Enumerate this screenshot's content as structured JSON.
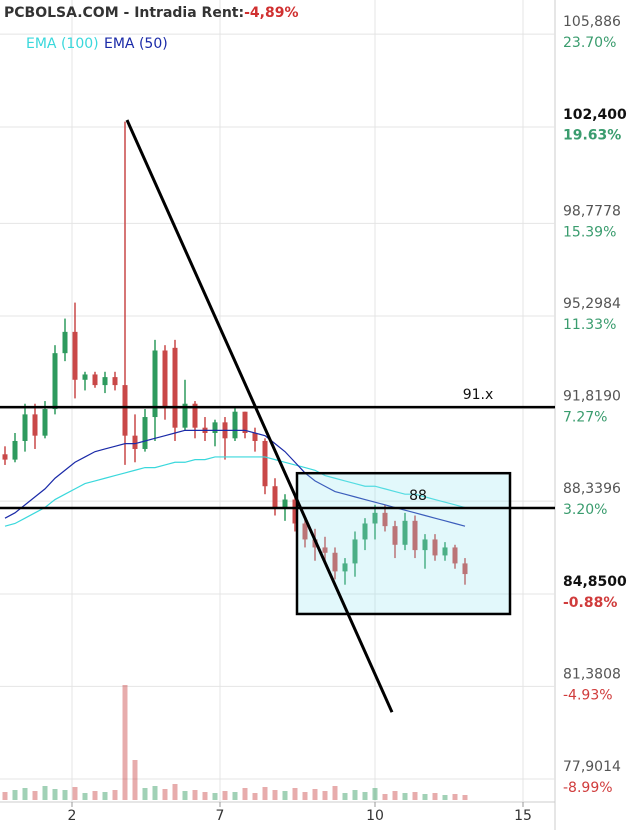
{
  "chart_data": {
    "type": "candlestick",
    "title": "PCBOLSA.COM - Intradia  Rent:",
    "title_change": "-4,89%",
    "xlim": [
      -0.5,
      55
    ],
    "xticks": [
      {
        "value": 6.7,
        "label": "2"
      },
      {
        "value": 21.5,
        "label": "7"
      },
      {
        "value": 37,
        "label": "10"
      },
      {
        "value": 51.8,
        "label": "15"
      }
    ],
    "ylim": [
      77.11,
      107.17
    ],
    "yticks": [
      {
        "value": 105.886,
        "label": "105,886"
      },
      {
        "value": 102.4,
        "label": "102,400"
      },
      {
        "value": 98.7778,
        "label": "98,7778"
      },
      {
        "value": 95.2984,
        "label": "95,2984"
      },
      {
        "value": 91.819,
        "label": "91,8190"
      },
      {
        "value": 88.3396,
        "label": "88,3396"
      },
      {
        "value": 84.85,
        "label": "84,8500"
      },
      {
        "value": 81.3808,
        "label": "81,3808"
      },
      {
        "value": 77.9014,
        "label": "77,9014"
      }
    ],
    "y2lim": [
      -9.92,
      25.19
    ],
    "y2ticks": [
      {
        "value": 23.7,
        "label": "23.70%"
      },
      {
        "value": 19.63,
        "label": "19.63%"
      },
      {
        "value": 15.39,
        "label": "15.39%"
      },
      {
        "value": 11.33,
        "label": "11.33%"
      },
      {
        "value": 7.27,
        "label": "7.27%"
      },
      {
        "value": 3.2,
        "label": "3.20%"
      },
      {
        "value": -0.88,
        "label": "-0.88%"
      },
      {
        "value": -4.93,
        "label": "-4.93%"
      },
      {
        "value": -8.99,
        "label": "-8.99%"
      }
    ],
    "highlight_ticks": [
      1,
      6
    ],
    "grid": true,
    "up_color": "#2e9a5e",
    "down_color": "#c94848",
    "open": [
      90.1,
      89.9,
      90.6,
      91.6,
      90.8,
      91.8,
      93.9,
      94.7,
      92.9,
      93.1,
      92.7,
      93.0,
      92.7,
      90.8,
      90.3,
      91.5,
      94.0,
      94.1,
      91.1,
      92.0,
      91.1,
      90.9,
      91.3,
      90.7,
      91.7,
      90.9,
      90.6,
      88.9,
      88.1,
      88.4,
      87.5,
      86.9,
      86.6,
      86.4,
      85.7,
      86.0,
      86.9,
      87.5,
      87.9,
      87.4,
      86.7,
      87.6,
      86.5,
      86.9,
      86.3,
      86.6,
      86.0
    ],
    "high": [
      90.4,
      90.9,
      92.0,
      92.0,
      92.1,
      94.2,
      95.2,
      95.8,
      93.2,
      93.2,
      93.2,
      93.2,
      102.6,
      91.6,
      91.8,
      94.4,
      94.2,
      94.4,
      92.9,
      92.1,
      91.5,
      91.4,
      91.5,
      91.9,
      91.7,
      91.1,
      90.7,
      89.2,
      88.6,
      88.5,
      87.7,
      87.3,
      87.0,
      86.6,
      86.2,
      87.2,
      87.7,
      88.2,
      88.2,
      87.6,
      87.9,
      87.8,
      87.1,
      87.1,
      86.8,
      86.7,
      86.2
    ],
    "low": [
      89.7,
      89.8,
      90.2,
      90.3,
      90.7,
      91.6,
      93.6,
      92.2,
      92.5,
      92.6,
      92.4,
      92.5,
      89.7,
      89.8,
      90.2,
      90.6,
      91.4,
      90.6,
      91.0,
      90.7,
      90.6,
      90.4,
      89.9,
      90.6,
      90.7,
      90.2,
      88.6,
      87.8,
      87.6,
      87.2,
      86.6,
      86.1,
      86.1,
      85.4,
      85.2,
      85.5,
      86.5,
      86.9,
      87.2,
      86.2,
      86.5,
      86.2,
      85.8,
      86.1,
      86.1,
      85.8,
      85.2
    ],
    "close": [
      89.9,
      90.6,
      91.6,
      90.8,
      91.8,
      93.9,
      94.7,
      92.9,
      93.1,
      92.7,
      93.0,
      92.7,
      90.8,
      90.3,
      91.5,
      94.0,
      91.9,
      91.1,
      92.0,
      91.1,
      90.9,
      91.3,
      90.7,
      91.7,
      90.9,
      90.6,
      88.9,
      88.1,
      88.4,
      87.5,
      86.9,
      86.6,
      86.4,
      85.7,
      86.0,
      86.9,
      87.5,
      87.9,
      87.4,
      86.7,
      87.6,
      86.5,
      86.9,
      86.3,
      86.6,
      86.0,
      85.6
    ],
    "volume": [
      8,
      10,
      12,
      9,
      14,
      11,
      10,
      13,
      7,
      9,
      8,
      10,
      115,
      40,
      12,
      14,
      11,
      16,
      9,
      10,
      8,
      7,
      9,
      8,
      12,
      7,
      13,
      10,
      9,
      12,
      8,
      11,
      9,
      14,
      7,
      10,
      8,
      12,
      6,
      9,
      7,
      8,
      6,
      7,
      5,
      6,
      5
    ],
    "series": [
      {
        "name": "EMA (100)",
        "color": "#3ad8dc",
        "values": [
          87.4,
          87.5,
          87.7,
          87.9,
          88.1,
          88.4,
          88.6,
          88.8,
          89.0,
          89.1,
          89.2,
          89.3,
          89.4,
          89.5,
          89.6,
          89.6,
          89.7,
          89.8,
          89.8,
          89.9,
          89.9,
          90.0,
          90.0,
          90.0,
          90.0,
          90.0,
          90.0,
          89.9,
          89.8,
          89.7,
          89.6,
          89.5,
          89.3,
          89.2,
          89.1,
          89.0,
          88.9,
          88.9,
          88.8,
          88.7,
          88.6,
          88.6,
          88.5,
          88.4,
          88.3,
          88.2,
          88.1
        ]
      },
      {
        "name": "EMA (50)",
        "color": "#1a2aa8",
        "values": [
          87.7,
          87.9,
          88.2,
          88.5,
          88.8,
          89.2,
          89.5,
          89.8,
          90.0,
          90.2,
          90.3,
          90.4,
          90.5,
          90.5,
          90.6,
          90.7,
          90.8,
          90.9,
          91.0,
          91.0,
          91.0,
          91.0,
          91.0,
          91.0,
          91.0,
          90.9,
          90.8,
          90.5,
          90.2,
          89.8,
          89.4,
          89.1,
          88.9,
          88.7,
          88.6,
          88.5,
          88.4,
          88.3,
          88.2,
          88.1,
          88.0,
          87.9,
          87.8,
          87.7,
          87.6,
          87.5,
          87.4
        ]
      }
    ],
    "hlines": [
      {
        "value": 91.87,
        "label": "91.x"
      },
      {
        "value": 88.08,
        "label": "88"
      }
    ],
    "trendline": {
      "x": [
        12.2,
        38.7
      ],
      "y": [
        102.66,
        80.41
      ]
    },
    "box": {
      "x": [
        29.2,
        50.5
      ],
      "y": [
        89.39,
        84.1
      ]
    }
  }
}
